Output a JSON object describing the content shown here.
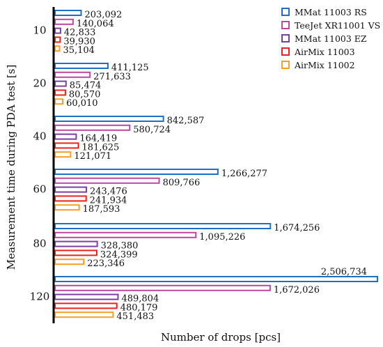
{
  "chart_data": {
    "type": "bar",
    "orientation": "horizontal",
    "title": "",
    "xlabel": "Number of drops  [pcs]",
    "ylabel": "Measurement time during PDA test  [s]",
    "categories": [
      "10",
      "20",
      "40",
      "60",
      "80",
      "120"
    ],
    "xlim": [
      0,
      2506734
    ],
    "grid": false,
    "legend_position": "top-right",
    "series": [
      {
        "name": "MMat 11003 RS",
        "color": "#1F6FC5",
        "values": [
          203092,
          411125,
          842587,
          1266277,
          1674256,
          2506734
        ],
        "labels": [
          "203,092",
          "411,125",
          "842,587",
          "1,266,277",
          "1,674,256",
          "2,506,734"
        ]
      },
      {
        "name": "TeeJet XR11001 VS",
        "color": "#C0479E",
        "values": [
          140064,
          271633,
          580724,
          809766,
          1095226,
          1672026
        ],
        "labels": [
          "140,064",
          "271,633",
          "580,724",
          "809,766",
          "1,095,226",
          "1,672,026"
        ]
      },
      {
        "name": "MMat 11003 EZ",
        "color": "#7B3FA0",
        "values": [
          42833,
          85474,
          164419,
          243476,
          328380,
          489804
        ],
        "labels": [
          "42,833",
          "85,474",
          "164,419",
          "243,476",
          "328,380",
          "489,804"
        ]
      },
      {
        "name": "AirMix 11003",
        "color": "#E8231E",
        "values": [
          39930,
          80570,
          181625,
          241934,
          324399,
          480179
        ],
        "labels": [
          "39,930",
          "80,570",
          "181,625",
          "241,934",
          "324,399",
          "480,179"
        ]
      },
      {
        "name": "AirMix 11002",
        "color": "#F4A024",
        "values": [
          35104,
          60010,
          121071,
          187593,
          223346,
          451483
        ],
        "labels": [
          "35,104",
          "60,010",
          "121,071",
          "187,593",
          "223,346",
          "451,483"
        ]
      }
    ]
  }
}
